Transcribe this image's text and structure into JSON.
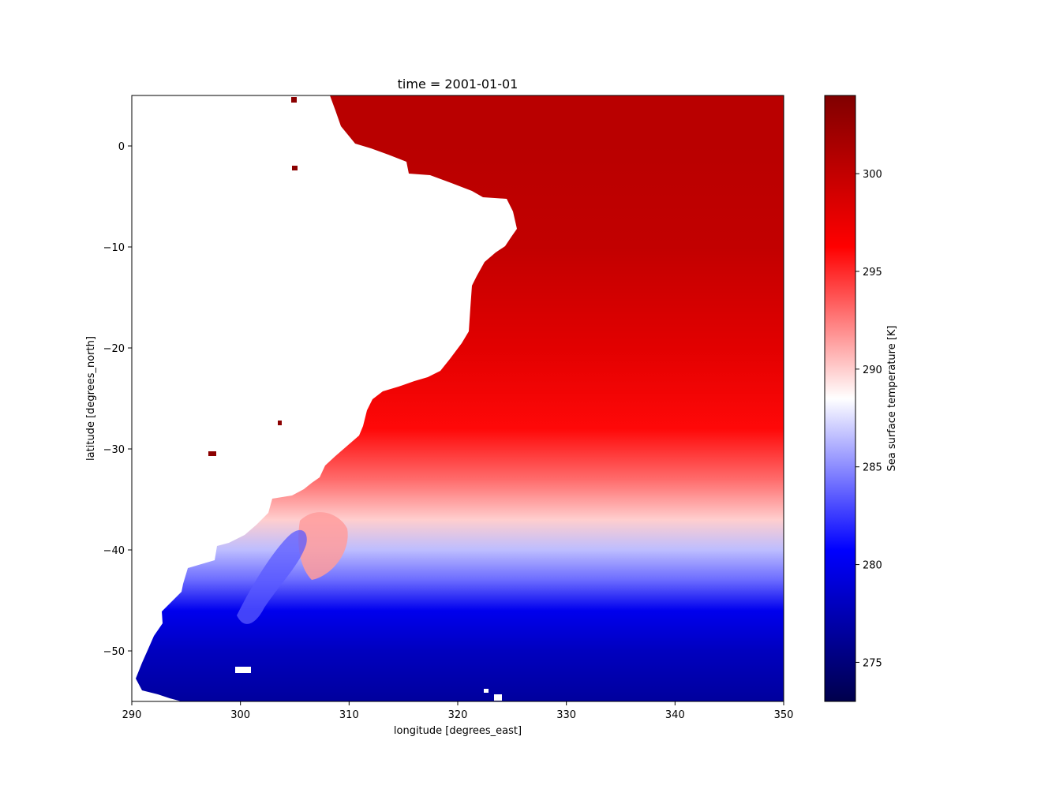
{
  "chart_data": {
    "type": "heatmap",
    "title": "time = 2001-01-01",
    "xlabel": "longitude [degrees_east]",
    "ylabel": "latitude [degrees_north]",
    "xlim": [
      290,
      350
    ],
    "ylim": [
      -55,
      5
    ],
    "x_ticks": [
      290,
      300,
      310,
      320,
      330,
      340,
      350
    ],
    "y_ticks": [
      0,
      -10,
      -20,
      -30,
      -40,
      -50
    ],
    "grid": false,
    "colorbar": {
      "label": "Sea surface temperature [K]",
      "range": [
        273,
        304
      ],
      "center": 288.5,
      "ticks": [
        275,
        280,
        285,
        290,
        295,
        300
      ],
      "colormap": [
        "#00004c",
        "#0000ff",
        "#ffffff",
        "#ff0000",
        "#800000"
      ]
    },
    "land_color": "#ffffff",
    "field_profile": [
      {
        "lat": 5,
        "sst": 300.5
      },
      {
        "lat": 0,
        "sst": 300.5
      },
      {
        "lat": -10,
        "sst": 300
      },
      {
        "lat": -20,
        "sst": 298
      },
      {
        "lat": -28,
        "sst": 296
      },
      {
        "lat": -33,
        "sst": 293
      },
      {
        "lat": -37,
        "sst": 290
      },
      {
        "lat": -40,
        "sst": 286.5
      },
      {
        "lat": -43,
        "sst": 284
      },
      {
        "lat": -46,
        "sst": 280
      },
      {
        "lat": -50,
        "sst": 278
      },
      {
        "lat": -55,
        "sst": 276.5
      }
    ]
  }
}
